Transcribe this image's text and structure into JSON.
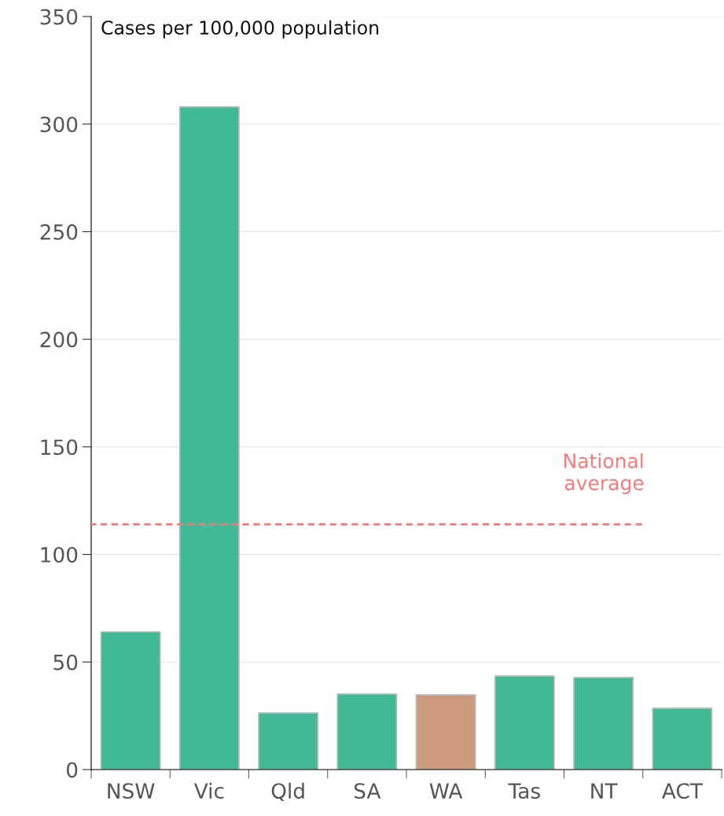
{
  "chart_data": {
    "type": "bar",
    "title": "Cases per 100,000 population",
    "categories": [
      "NSW",
      "Vic",
      "Qld",
      "SA",
      "WA",
      "Tas",
      "NT",
      "ACT"
    ],
    "values": [
      64,
      308,
      26.3,
      35.1,
      34.7,
      43.5,
      42.8,
      28.5
    ],
    "colors": [
      "#42b995",
      "#42b995",
      "#42b995",
      "#42b995",
      "#cc9a7f",
      "#42b995",
      "#42b995",
      "#42b995"
    ],
    "ylim": [
      0,
      350
    ],
    "yticks": [
      0,
      50,
      100,
      150,
      200,
      250,
      300,
      350
    ],
    "grid": "y",
    "ref_lines": [
      {
        "axis": "y",
        "value": 114,
        "label": "National\naverage",
        "color": "#f87a7a",
        "line_style": "dashed"
      }
    ]
  }
}
